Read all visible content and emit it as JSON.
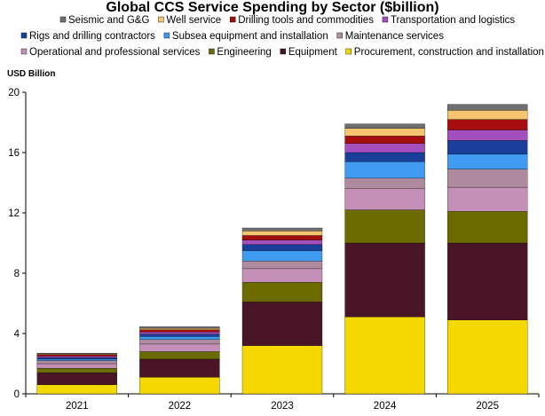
{
  "chart_data": {
    "type": "bar",
    "stacked": true,
    "title": "Global CCS Service Spending by Sector ($billion)",
    "ylabel": "USD Billion",
    "xlabel": "",
    "ylim": [
      0,
      20
    ],
    "yticks": [
      0,
      4,
      8,
      12,
      16,
      20
    ],
    "grid": false,
    "legend_position": "top",
    "categories": [
      "2021",
      "2022",
      "2023",
      "2024",
      "2025"
    ],
    "series": [
      {
        "name": "Procurement, construction and installation",
        "color": "#F5D800",
        "values": [
          0.6,
          1.1,
          3.2,
          5.1,
          4.9
        ]
      },
      {
        "name": "Equipment",
        "color": "#4A1527",
        "values": [
          0.8,
          1.2,
          2.9,
          4.9,
          5.1
        ]
      },
      {
        "name": "Engineering",
        "color": "#6B6B00",
        "values": [
          0.3,
          0.5,
          1.3,
          2.2,
          2.1
        ]
      },
      {
        "name": "Operational and professional services",
        "color": "#C490B8",
        "values": [
          0.3,
          0.5,
          0.9,
          1.4,
          1.6
        ]
      },
      {
        "name": "Maintenance services",
        "color": "#B08A9E",
        "values": [
          0.2,
          0.3,
          0.5,
          0.7,
          1.2
        ]
      },
      {
        "name": "Subsea equipment and installation",
        "color": "#3E9BEF",
        "values": [
          0.1,
          0.2,
          0.7,
          1.1,
          1.0
        ]
      },
      {
        "name": "Rigs and drilling contractors",
        "color": "#1A3E9C",
        "values": [
          0.1,
          0.15,
          0.4,
          0.6,
          0.9
        ]
      },
      {
        "name": "Transportation and logistics",
        "color": "#A34FBE",
        "values": [
          0.1,
          0.15,
          0.3,
          0.6,
          0.7
        ]
      },
      {
        "name": "Drilling tools and commodities",
        "color": "#A60D0D",
        "values": [
          0.1,
          0.15,
          0.3,
          0.5,
          0.7
        ]
      },
      {
        "name": "Well service",
        "color": "#F5C46E",
        "values": [
          0.05,
          0.1,
          0.3,
          0.5,
          0.6
        ]
      },
      {
        "name": "Seismic and G&G",
        "color": "#6F6F6F",
        "values": [
          0.05,
          0.1,
          0.2,
          0.3,
          0.4
        ]
      }
    ],
    "legend_rows": [
      [
        "Seismic and G&G",
        "Well service",
        "Drilling tools and commodities",
        "Transportation and logistics"
      ],
      [
        "Rigs and drilling contractors",
        "Subsea equipment and installation",
        "Maintenance services"
      ],
      [
        "Operational and professional services",
        "Engineering",
        "Equipment",
        "Procurement, construction and installation"
      ]
    ]
  }
}
